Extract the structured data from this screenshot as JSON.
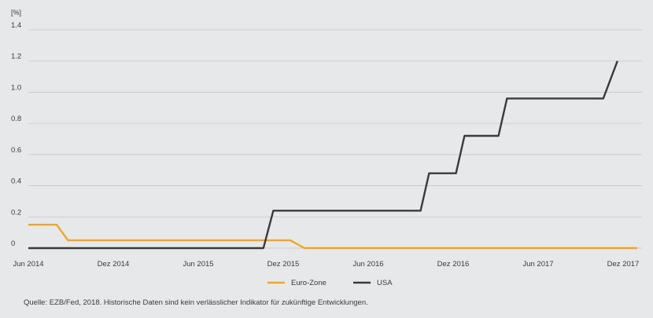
{
  "chart_data": {
    "type": "line",
    "unit_label": "[%]",
    "ylim": [
      0,
      1.4
    ],
    "y_ticks": [
      0,
      0.2,
      0.4,
      0.6,
      0.8,
      1.0,
      1.2,
      1.4
    ],
    "y_tick_labels": [
      "0",
      "0.2",
      "0.4",
      "0.6",
      "0.8",
      "1.0",
      "1.2",
      "1.4"
    ],
    "x_tick_labels": [
      "Jun 2014",
      "Dez 2014",
      "Jun 2015",
      "Dez 2015",
      "Jun 2016",
      "Dez 2016",
      "Jun 2017",
      "Dez 2017"
    ],
    "x_tick_months": [
      0,
      6,
      12,
      18,
      24,
      30,
      36,
      42
    ],
    "xlim_months": [
      0,
      43
    ],
    "grid": true,
    "legend_placement": "bottom-center",
    "series": [
      {
        "name": "Euro-Zone",
        "color": "#f0a623",
        "points": [
          [
            0,
            0.15
          ],
          [
            2,
            0.15
          ],
          [
            2.8,
            0.05
          ],
          [
            18.5,
            0.05
          ],
          [
            19.5,
            0
          ],
          [
            43,
            0
          ]
        ]
      },
      {
        "name": "USA",
        "color": "#3a3a3c",
        "points": [
          [
            0,
            0
          ],
          [
            16.6,
            0
          ],
          [
            17.3,
            0.24
          ],
          [
            27.7,
            0.24
          ],
          [
            28.3,
            0.48
          ],
          [
            30.2,
            0.48
          ],
          [
            30.8,
            0.72
          ],
          [
            33.2,
            0.72
          ],
          [
            33.8,
            0.96
          ],
          [
            40.6,
            0.96
          ],
          [
            41.6,
            1.2
          ]
        ]
      }
    ]
  },
  "source_note": "Quelle: EZB/Fed, 2018. Historische Daten sind kein verlässlicher Indikator für zukünftige Entwicklungen."
}
